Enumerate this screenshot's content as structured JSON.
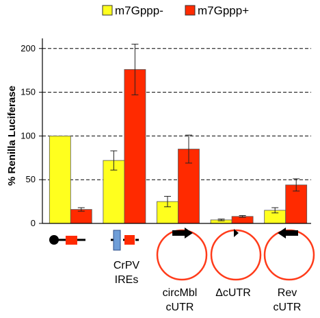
{
  "chart_data": {
    "type": "bar",
    "ylabel": "% Renilla Luciferase",
    "ylim": [
      0,
      210
    ],
    "yticks": [
      0,
      50,
      100,
      150,
      200
    ],
    "grid": "horizontal-dashed",
    "legend_position": "top",
    "categories": [
      {
        "lines": [
          "",
          ""
        ]
      },
      {
        "lines": [
          "CrPV",
          "IREs"
        ]
      },
      {
        "lines": [
          "circMbl",
          "cUTR"
        ]
      },
      {
        "lines": [
          "ΔcUTR",
          ""
        ]
      },
      {
        "lines": [
          "Rev",
          "cUTR"
        ]
      }
    ],
    "series": [
      {
        "name": "m7Gppp-",
        "color": "#ffff1e",
        "values": [
          100,
          72,
          25,
          4,
          15
        ],
        "errors": [
          0,
          11,
          6,
          1,
          3
        ]
      },
      {
        "name": "m7Gppp+",
        "color": "#ff2a00",
        "values": [
          16,
          176,
          85,
          8,
          44
        ],
        "errors": [
          2,
          29,
          16,
          1,
          7
        ]
      }
    ]
  }
}
